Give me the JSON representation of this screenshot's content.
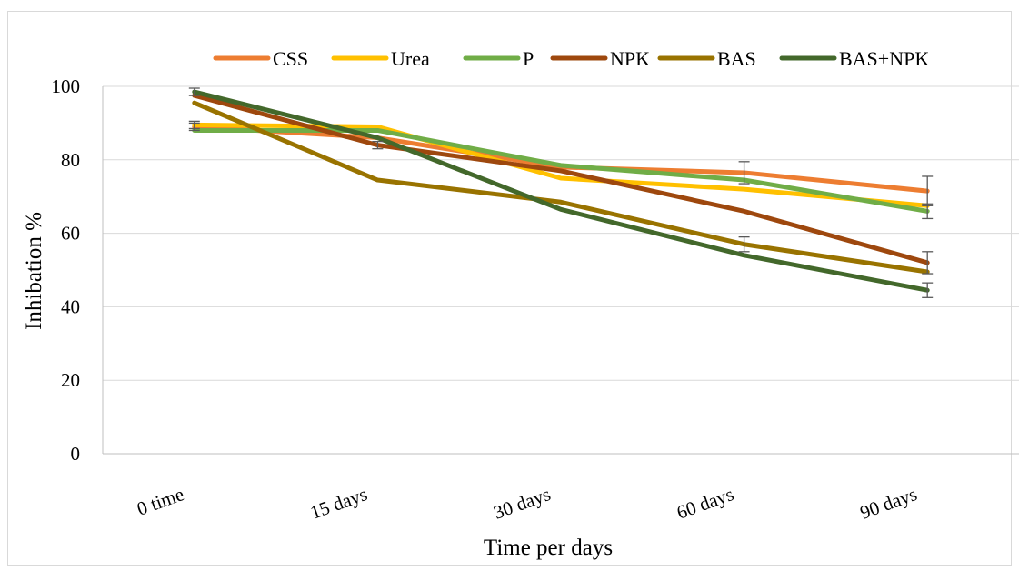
{
  "chart_data": {
    "type": "line",
    "categories": [
      "0 time",
      "15 days",
      "30 days",
      "60 days",
      "90 days"
    ],
    "xlabel": "Time per days",
    "ylabel": "Inhibation %",
    "ylim": [
      0,
      100
    ],
    "yticks": [
      0,
      20,
      40,
      60,
      80,
      100
    ],
    "grid": "horizontal",
    "legend": "top",
    "series": [
      {
        "name": "CSS",
        "color": "#ED7D31",
        "values": [
          89,
          86,
          78,
          76.5,
          71.5
        ],
        "errors": [
          1,
          0,
          0,
          3,
          4
        ]
      },
      {
        "name": "Urea",
        "color": "#FFC000",
        "values": [
          89.5,
          89,
          75,
          72,
          67.5
        ],
        "errors": [
          1,
          0,
          0,
          0,
          0
        ]
      },
      {
        "name": "P",
        "color": "#70AD47",
        "values": [
          88,
          88,
          78.5,
          74.5,
          66
        ],
        "errors": [
          0,
          0,
          0,
          0,
          2
        ]
      },
      {
        "name": "NPK",
        "color": "#9E480E",
        "values": [
          97.5,
          84,
          77,
          66,
          52
        ],
        "errors": [
          0,
          1,
          0,
          0,
          3
        ]
      },
      {
        "name": "BAS",
        "color": "#997300",
        "values": [
          95.5,
          74.5,
          68.5,
          57,
          49.5
        ],
        "errors": [
          0,
          0,
          0,
          2,
          0
        ]
      },
      {
        "name": "BAS+NPK",
        "color": "#43682B",
        "values": [
          98.5,
          86,
          66.5,
          54,
          44.5
        ],
        "errors": [
          1,
          0,
          0,
          0,
          2
        ]
      }
    ]
  }
}
